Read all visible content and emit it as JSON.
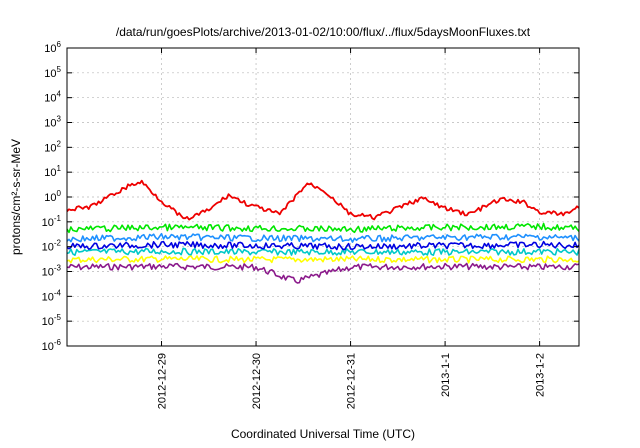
{
  "chart_data": {
    "type": "line",
    "title": "/data/run/goesPlots/archive/2013-01-02/10:00/flux/../flux/5daysMoonFluxes.txt",
    "xlabel": "Coordinated Universal Time (UTC)",
    "ylabel": "protons/cm²-s-sr-MeV",
    "y_scale": "log",
    "ylim": [
      1e-06,
      1000000.0
    ],
    "y_ticks": [
      {
        "value": 1e-06,
        "base": "10",
        "exp": "-6"
      },
      {
        "value": 1e-05,
        "base": "10",
        "exp": "-5"
      },
      {
        "value": 0.0001,
        "base": "10",
        "exp": "-4"
      },
      {
        "value": 0.001,
        "base": "10",
        "exp": "-3"
      },
      {
        "value": 0.01,
        "base": "10",
        "exp": "-2"
      },
      {
        "value": 0.1,
        "base": "10",
        "exp": "-1"
      },
      {
        "value": 1,
        "base": "10",
        "exp": "0"
      },
      {
        "value": 10,
        "base": "10",
        "exp": "1"
      },
      {
        "value": 100,
        "base": "10",
        "exp": "2"
      },
      {
        "value": 1000,
        "base": "10",
        "exp": "3"
      },
      {
        "value": 10000,
        "base": "10",
        "exp": "4"
      },
      {
        "value": 100000,
        "base": "10",
        "exp": "5"
      },
      {
        "value": 1000000,
        "base": "10",
        "exp": "6"
      }
    ],
    "xlim": [
      "2012-12-28 00:00",
      "2013-01-02 10:00"
    ],
    "x_ticks": [
      {
        "value": "2012-12-29 00:00",
        "label": "2012-12-29"
      },
      {
        "value": "2012-12-30 00:00",
        "label": "2012-12-30"
      },
      {
        "value": "2012-12-31 00:00",
        "label": "2012-12-31"
      },
      {
        "value": "2013-01-01 00:00",
        "label": "2013-1-1"
      },
      {
        "value": "2013-01-02 00:00",
        "label": "2013-1-2"
      }
    ],
    "grid": true,
    "series": [
      {
        "color": "#8b1a8b",
        "x": [
          "2012-12-28 00:00",
          "2012-12-29 00:00",
          "2012-12-30 00:00",
          "2012-12-30 10:00",
          "2012-12-31 00:00",
          "2013-01-01 00:00",
          "2013-01-02 00:00",
          "2013-01-02 10:00"
        ],
        "values": [
          0.0015,
          0.0016,
          0.0015,
          0.0004,
          0.0015,
          0.0016,
          0.0015,
          0.0016
        ]
      },
      {
        "color": "#ffff00",
        "x": [
          "2012-12-28 00:00",
          "2012-12-29 00:00",
          "2012-12-30 00:00",
          "2012-12-31 00:00",
          "2013-01-01 00:00",
          "2013-01-02 00:00",
          "2013-01-02 10:00"
        ],
        "values": [
          0.003,
          0.0032,
          0.003,
          0.0031,
          0.003,
          0.0031,
          0.003
        ]
      },
      {
        "color": "#00c8c8",
        "x": [
          "2012-12-28 00:00",
          "2012-12-29 00:00",
          "2012-12-30 00:00",
          "2012-12-31 00:00",
          "2013-01-01 00:00",
          "2013-01-02 00:00",
          "2013-01-02 10:00"
        ],
        "values": [
          0.006,
          0.0065,
          0.006,
          0.0062,
          0.006,
          0.0063,
          0.006
        ]
      },
      {
        "color": "#0000e0",
        "x": [
          "2012-12-28 00:00",
          "2012-12-29 00:00",
          "2012-12-30 00:00",
          "2012-12-31 00:00",
          "2013-01-01 00:00",
          "2013-01-02 00:00",
          "2013-01-02 10:00"
        ],
        "values": [
          0.01,
          0.012,
          0.011,
          0.01,
          0.011,
          0.012,
          0.011
        ]
      },
      {
        "color": "#1e90ff",
        "x": [
          "2012-12-28 00:00",
          "2012-12-29 00:00",
          "2012-12-30 00:00",
          "2012-12-31 00:00",
          "2013-01-01 00:00",
          "2013-01-02 00:00",
          "2013-01-02 10:00"
        ],
        "values": [
          0.02,
          0.025,
          0.022,
          0.02,
          0.024,
          0.025,
          0.022
        ]
      },
      {
        "color": "#00e600",
        "x": [
          "2012-12-28 00:00",
          "2012-12-29 00:00",
          "2012-12-30 00:00",
          "2012-12-31 00:00",
          "2013-01-01 00:00",
          "2013-01-02 00:00",
          "2013-01-02 10:00"
        ],
        "values": [
          0.05,
          0.06,
          0.055,
          0.05,
          0.06,
          0.065,
          0.055
        ]
      },
      {
        "color": "#ee0000",
        "x": [
          "2012-12-28 00:00",
          "2012-12-28 06:00",
          "2012-12-28 16:00",
          "2012-12-28 19:00",
          "2012-12-29 00:00",
          "2012-12-29 06:00",
          "2012-12-29 12:00",
          "2012-12-29 17:00",
          "2012-12-29 22:00",
          "2012-12-30 06:00",
          "2012-12-30 13:00",
          "2012-12-30 17:00",
          "2012-12-31 00:00",
          "2012-12-31 06:00",
          "2012-12-31 12:00",
          "2012-12-31 18:00",
          "2013-01-01 00:00",
          "2013-01-01 06:00",
          "2013-01-01 14:00",
          "2013-01-01 20:00",
          "2013-01-02 00:00",
          "2013-01-02 06:00",
          "2013-01-02 10:00"
        ],
        "values": [
          0.3,
          0.4,
          3,
          4,
          0.7,
          0.12,
          0.3,
          1.2,
          0.5,
          0.2,
          3.5,
          2,
          0.2,
          0.15,
          0.35,
          0.9,
          0.35,
          0.2,
          0.8,
          0.6,
          0.25,
          0.2,
          0.4
        ]
      }
    ]
  }
}
